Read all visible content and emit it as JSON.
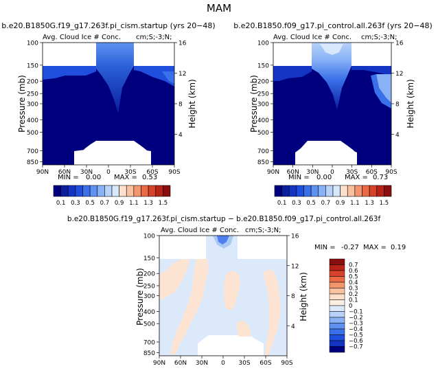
{
  "figure": {
    "title": "MAM"
  },
  "colors": {
    "blue_scale": [
      "#00007f",
      "#0a1e9e",
      "#1434c4",
      "#1f4fdc",
      "#3a70ea",
      "#5f92f0",
      "#88b2f5",
      "#b8d2fa",
      "#d8e8fc"
    ],
    "warm_scale": [
      "#fde0cc",
      "#f9c19f",
      "#f3956d",
      "#ea6a45",
      "#d6432a",
      "#b72417",
      "#8a0e0e"
    ],
    "diff_blue": "#dbe9fb",
    "diff_tan": "#fde4d2",
    "diff_mid_blue": "#a9c8f4",
    "diff_dark_blue": "#4f7ef0"
  },
  "chart_data": [
    {
      "type": "heatmap",
      "title": "b.e20.B1850G.f19_g17.263f.pi_cism.startup (yrs 20−48)",
      "subtitle": "Avg. Cloud Ice # Conc.",
      "units_label": "cm;S;-3;N;",
      "ylabel": "Pressure (mb)",
      "y2label": "Height (km)",
      "xticks": [
        "90N",
        "60N",
        "30N",
        "0",
        "30S",
        "60S",
        "90S"
      ],
      "yticks": [
        "100",
        "150",
        "200",
        "250",
        "300",
        "400",
        "500",
        "700",
        "850"
      ],
      "y2ticks": [
        "16",
        "12",
        "8",
        "4"
      ],
      "xlim": [
        90,
        -90
      ],
      "ylim": [
        100,
        900
      ],
      "stats": {
        "min_label": "MIN =",
        "min": "0.00",
        "max_label": "MAX =",
        "max": "0.53"
      },
      "colorbar": {
        "levels": [
          "0.1",
          "0.3",
          "0.5",
          "0.7",
          "0.9",
          "1.1",
          "1.3",
          "1.5"
        ]
      }
    },
    {
      "type": "heatmap",
      "title": "b.e20.B1850.f09_g17.pi_control.all.263f (yrs 20−48)",
      "subtitle": "Avg. Cloud Ice # Conc.",
      "units_label": "cm;S;-3;N;",
      "ylabel": "Pressure (mb)",
      "y2label": "Height (km)",
      "xticks": [
        "90N",
        "60N",
        "30N",
        "0",
        "30S",
        "60S",
        "90S"
      ],
      "yticks": [
        "100",
        "150",
        "200",
        "250",
        "300",
        "400",
        "500",
        "700",
        "850"
      ],
      "y2ticks": [
        "16",
        "12",
        "8",
        "4"
      ],
      "xlim": [
        90,
        -90
      ],
      "ylim": [
        100,
        900
      ],
      "stats": {
        "min_label": "MIN =",
        "min": "0.00",
        "max_label": "MAX =",
        "max": "0.73"
      },
      "colorbar": {
        "levels": [
          "0.1",
          "0.3",
          "0.5",
          "0.7",
          "0.9",
          "1.1",
          "1.3",
          "1.5"
        ]
      }
    },
    {
      "type": "heatmap",
      "title": "b.e20.B1850G.f19_g17.263f.pi_cism.startup − b.e20.B1850.f09_g17.pi_control.all.263f",
      "subtitle": "Avg. Cloud Ice # Conc.",
      "units_label": "cm;S;-3;N;",
      "ylabel": "Pressure (mb)",
      "y2label": "Height (km)",
      "xticks": [
        "90N",
        "60N",
        "30N",
        "0",
        "30S",
        "60S",
        "90S"
      ],
      "yticks": [
        "100",
        "150",
        "200",
        "250",
        "300",
        "400",
        "500",
        "700",
        "850"
      ],
      "y2ticks": [
        "16",
        "12",
        "8",
        "4"
      ],
      "xlim": [
        90,
        -90
      ],
      "ylim": [
        100,
        900
      ],
      "stats": {
        "min_label": "MIN =",
        "min": "-0.27",
        "max_label": "MAX =",
        "max": "0.19"
      },
      "colorbar": {
        "levels": [
          "0.7",
          "0.6",
          "0.5",
          "0.4",
          "0.3",
          "0.2",
          "0.1",
          "0",
          "−0.1",
          "−0.2",
          "−0.3",
          "−0.4",
          "−0.5",
          "−0.6",
          "−0.7"
        ]
      }
    }
  ]
}
